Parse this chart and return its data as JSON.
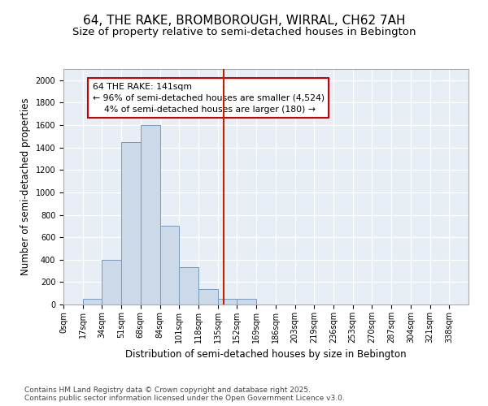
{
  "title_line1": "64, THE RAKE, BROMBOROUGH, WIRRAL, CH62 7AH",
  "title_line2": "Size of property relative to semi-detached houses in Bebington",
  "xlabel": "Distribution of semi-detached houses by size in Bebington",
  "ylabel": "Number of semi-detached properties",
  "bin_labels": [
    "0sqm",
    "17sqm",
    "34sqm",
    "51sqm",
    "68sqm",
    "84sqm",
    "101sqm",
    "118sqm",
    "135sqm",
    "152sqm",
    "169sqm",
    "186sqm",
    "203sqm",
    "219sqm",
    "236sqm",
    "253sqm",
    "270sqm",
    "287sqm",
    "304sqm",
    "321sqm",
    "338sqm"
  ],
  "bar_heights": [
    0,
    50,
    400,
    1450,
    1600,
    700,
    330,
    140,
    50,
    50,
    0,
    0,
    0,
    0,
    0,
    0,
    0,
    0,
    0,
    0,
    0
  ],
  "bar_color": "#ccd9e8",
  "bar_edge_color": "#7799bb",
  "vline_color": "#bb2200",
  "annotation_text": "64 THE RAKE: 141sqm\n← 96% of semi-detached houses are smaller (4,524)\n    4% of semi-detached houses are larger (180) →",
  "annotation_box_color": "#ffffff",
  "annotation_box_edge": "#cc0000",
  "ylim": [
    0,
    2100
  ],
  "yticks": [
    0,
    200,
    400,
    600,
    800,
    1000,
    1200,
    1400,
    1600,
    1800,
    2000
  ],
  "background_color": "#e8eef5",
  "grid_color": "#ffffff",
  "footer_text": "Contains HM Land Registry data © Crown copyright and database right 2025.\nContains public sector information licensed under the Open Government Licence v3.0.",
  "title_fontsize": 11,
  "subtitle_fontsize": 9.5,
  "axis_label_fontsize": 8.5,
  "tick_fontsize": 7,
  "annotation_fontsize": 7.8,
  "footer_fontsize": 6.5,
  "vline_bin": 8.47
}
